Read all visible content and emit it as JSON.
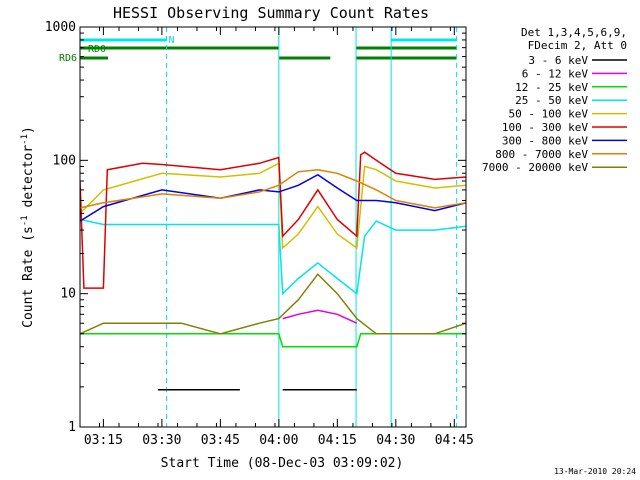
{
  "title": "HESSI Observing Summary Count Rates",
  "xlabel": "Start Time (08-Dec-03 03:09:02)",
  "ylabel_main": "Count Rate (s",
  "ylabel_sup1": "-1",
  "ylabel_mid": " detector",
  "ylabel_sup2": "-1",
  "ylabel_end": ")",
  "legend_header": [
    "Det 1,3,4,5,6,9,",
    "FDecim 2, Att 0"
  ],
  "timestamp": "13-Mar-2010 20:24",
  "flags": {
    "n_label": "N",
    "rd0_label": "RD0",
    "rd6_label": "RD6",
    "n_color": "#00e5e5",
    "rd_color": "#008000",
    "n_segments": [
      [
        3.15,
        3.52
      ],
      [
        4.48,
        4.76
      ]
    ],
    "rd0_segments": [
      [
        3.15,
        4.0
      ],
      [
        4.33,
        4.76
      ]
    ],
    "rd6_segments": [
      [
        3.15,
        3.27
      ],
      [
        4.0,
        4.22
      ],
      [
        4.33,
        4.76
      ]
    ]
  },
  "vlines": {
    "solid_color": "#00e5e5",
    "solid": [
      3.15,
      4.0,
      4.33,
      4.48
    ],
    "dashed": [
      3.52,
      4.76
    ]
  },
  "chart_data": {
    "type": "line",
    "title": "HESSI Observing Summary Count Rates",
    "xlabel": "Start Time (08-Dec-03 03:09:02)",
    "ylabel": "Count Rate (s-1 detector-1)",
    "ylog": true,
    "xlim": [
      "03:09",
      "04:48"
    ],
    "ylim": [
      1,
      1000
    ],
    "x_ticks": [
      "03:15",
      "03:30",
      "03:45",
      "04:00",
      "04:15",
      "04:30",
      "04:45"
    ],
    "y_ticks": [
      "1",
      "10",
      "100",
      "1000"
    ],
    "grid": false,
    "legend_position": "right",
    "series": [
      {
        "name": "3 - 6 keV",
        "color": "#000000",
        "x": [
          "03:09",
          "03:28",
          "03:29",
          "03:50",
          "03:51",
          "04:00",
          "04:01",
          "04:20",
          "04:21",
          "04:48"
        ],
        "values": [
          null,
          null,
          1.9,
          1.9,
          null,
          null,
          1.9,
          1.9,
          null,
          null
        ]
      },
      {
        "name": "6 - 12 keV",
        "color": "#e000e0",
        "x": [
          "03:09",
          "03:15",
          "03:30",
          "03:45",
          "03:55",
          "04:00",
          "04:01",
          "04:05",
          "04:10",
          "04:15",
          "04:20",
          "04:22",
          "04:48"
        ],
        "values": [
          null,
          null,
          null,
          null,
          null,
          null,
          6.5,
          7,
          7.5,
          7,
          6,
          null,
          null
        ]
      },
      {
        "name": "12 - 25 keV",
        "color": "#00e000",
        "x": [
          "03:09",
          "03:10",
          "03:15",
          "03:30",
          "03:45",
          "03:55",
          "04:00",
          "04:01",
          "04:05",
          "04:10",
          "04:15",
          "04:20",
          "04:21",
          "04:30",
          "04:40",
          "04:48"
        ],
        "values": [
          5,
          5,
          5,
          5,
          5,
          5,
          5,
          4,
          4,
          4,
          4,
          4,
          5,
          5,
          5,
          5
        ]
      },
      {
        "name": "25 - 50 keV",
        "color": "#00e5e5",
        "x": [
          "03:09",
          "03:15",
          "03:30",
          "03:45",
          "03:55",
          "04:00",
          "04:01",
          "04:05",
          "04:10",
          "04:15",
          "04:20",
          "04:22",
          "04:25",
          "04:30",
          "04:40",
          "04:48"
        ],
        "values": [
          36,
          33,
          33,
          33,
          33,
          33,
          10,
          13,
          17,
          13,
          10,
          27,
          35,
          30,
          30,
          32
        ]
      },
      {
        "name": "50 - 100 keV",
        "color": "#d0c000",
        "x": [
          "03:09",
          "03:15",
          "03:30",
          "03:45",
          "03:55",
          "04:00",
          "04:01",
          "04:05",
          "04:10",
          "04:15",
          "04:20",
          "04:22",
          "04:25",
          "04:30",
          "04:40",
          "04:48"
        ],
        "values": [
          40,
          60,
          80,
          75,
          80,
          95,
          22,
          28,
          45,
          28,
          22,
          90,
          85,
          70,
          62,
          65
        ]
      },
      {
        "name": "100 - 300 keV",
        "color": "#e00000",
        "x": [
          "03:09",
          "03:10",
          "03:15",
          "03:16",
          "03:25",
          "03:30",
          "03:45",
          "03:55",
          "04:00",
          "04:01",
          "04:05",
          "04:10",
          "04:15",
          "04:20",
          "04:21",
          "04:22",
          "04:25",
          "04:30",
          "04:40",
          "04:48"
        ],
        "values": [
          70,
          11,
          11,
          85,
          95,
          93,
          85,
          95,
          105,
          27,
          36,
          60,
          36,
          27,
          110,
          115,
          100,
          80,
          72,
          75
        ]
      },
      {
        "name": "300 - 800 keV",
        "color": "#0000e0",
        "x": [
          "03:09",
          "03:15",
          "03:30",
          "03:45",
          "03:55",
          "04:00",
          "04:05",
          "04:10",
          "04:15",
          "04:20",
          "04:25",
          "04:30",
          "04:40",
          "04:48"
        ],
        "values": [
          35,
          45,
          60,
          52,
          60,
          58,
          65,
          78,
          62,
          50,
          50,
          48,
          42,
          48
        ]
      },
      {
        "name": "800 - 7000 keV",
        "color": "#e08000",
        "x": [
          "03:09",
          "03:15",
          "03:30",
          "03:45",
          "03:55",
          "04:00",
          "04:05",
          "04:10",
          "04:15",
          "04:20",
          "04:25",
          "04:30",
          "04:40",
          "04:48"
        ],
        "values": [
          44,
          48,
          56,
          52,
          58,
          65,
          82,
          85,
          80,
          70,
          60,
          50,
          44,
          48
        ]
      },
      {
        "name": "7000 - 20000 keV",
        "color": "#808000",
        "x": [
          "03:09",
          "03:15",
          "03:25",
          "03:35",
          "03:45",
          "03:55",
          "04:00",
          "04:05",
          "04:10",
          "04:15",
          "04:20",
          "04:25",
          "04:30",
          "04:40",
          "04:48"
        ],
        "values": [
          5,
          6,
          6,
          6,
          5,
          6,
          6.5,
          9,
          14,
          10,
          6.5,
          5,
          5,
          5,
          6
        ]
      }
    ]
  }
}
